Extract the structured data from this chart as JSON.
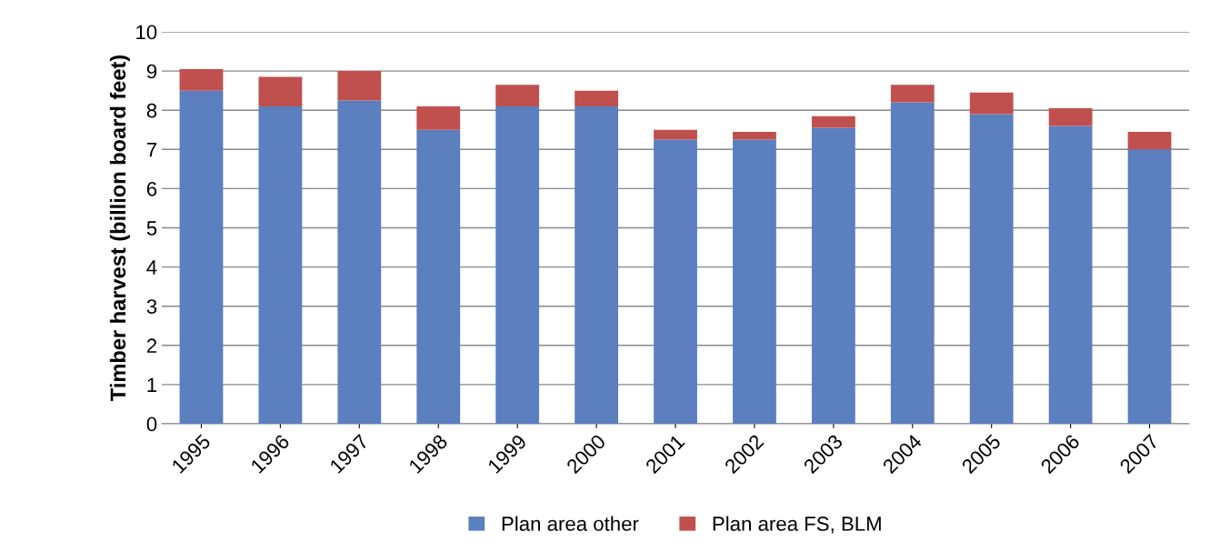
{
  "chart_data": {
    "type": "bar",
    "stacked": true,
    "ylabel": "Timber harvest (billion board feet)",
    "categories": [
      "1995",
      "1996",
      "1997",
      "1998",
      "1999",
      "2000",
      "2001",
      "2002",
      "2003",
      "2004",
      "2005",
      "2006",
      "2007"
    ],
    "series": [
      {
        "name": "Plan area other",
        "color": "#5b7fbf",
        "values": [
          8.5,
          8.1,
          8.25,
          7.5,
          8.1,
          8.1,
          7.25,
          7.25,
          7.55,
          8.2,
          7.9,
          7.6,
          7.0
        ]
      },
      {
        "name": "Plan area FS, BLM",
        "color": "#c0504d",
        "values": [
          0.55,
          0.75,
          0.75,
          0.6,
          0.55,
          0.4,
          0.25,
          0.2,
          0.3,
          0.45,
          0.55,
          0.45,
          0.45
        ]
      }
    ],
    "ylim": [
      0,
      10
    ],
    "yticks": [
      0,
      1,
      2,
      3,
      4,
      5,
      6,
      7,
      8,
      9,
      10
    ],
    "grid": "y",
    "legend": "bottom"
  }
}
